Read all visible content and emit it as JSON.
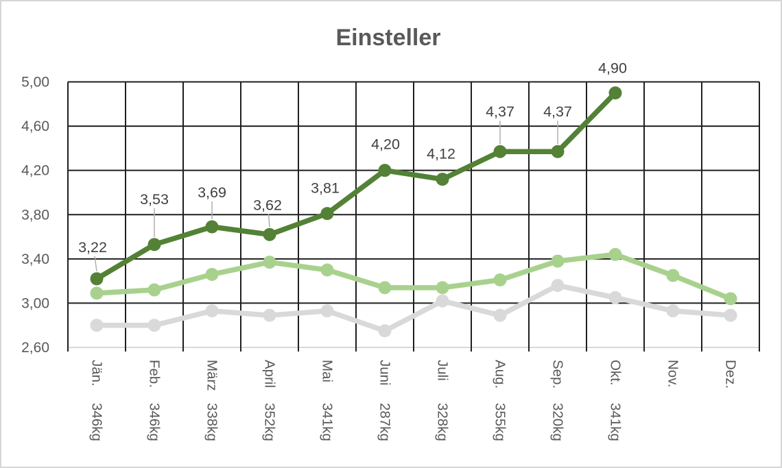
{
  "window": {
    "background": "#ffffff",
    "border_color": "#d6d6d6"
  },
  "chart_data": {
    "type": "line",
    "title": "Einsteller",
    "title_color": "#595959",
    "legend": {
      "show": false
    },
    "grid": {
      "show": true,
      "color": "#1f1f1f"
    },
    "categories": [
      {
        "month": "Jän.",
        "weight": "346kg"
      },
      {
        "month": "Feb.",
        "weight": "346kg"
      },
      {
        "month": "März",
        "weight": "338kg"
      },
      {
        "month": "April",
        "weight": "352kg"
      },
      {
        "month": "Mai",
        "weight": "341kg"
      },
      {
        "month": "Juni",
        "weight": "287kg"
      },
      {
        "month": "Juli",
        "weight": "328kg"
      },
      {
        "month": "Aug.",
        "weight": "355kg"
      },
      {
        "month": "Sep.",
        "weight": "320kg"
      },
      {
        "month": "Okt.",
        "weight": "341kg"
      },
      {
        "month": "Nov.",
        "weight": ""
      },
      {
        "month": "Dez.",
        "weight": ""
      }
    ],
    "y_axis": {
      "min": 2.6,
      "max": 5.0,
      "step": 0.4,
      "tick_labels": [
        "5,00",
        "4,60",
        "4,20",
        "3,80",
        "3,40",
        "3,00",
        "2,60"
      ],
      "label_color": "#595959"
    },
    "x_axis": {
      "label_color": "#595959",
      "tick_color": "#1f1f1f",
      "axis_line_color": "#d9d9d9"
    },
    "series": [
      {
        "id": "gray-line",
        "color": "#d9d9d9",
        "values": [
          2.8,
          2.8,
          2.93,
          2.89,
          2.93,
          2.75,
          3.02,
          2.89,
          3.16,
          3.05,
          2.93,
          2.89
        ]
      },
      {
        "id": "light-green-line",
        "color": "#a9d18e",
        "values": [
          3.09,
          3.12,
          3.26,
          3.37,
          3.3,
          3.14,
          3.14,
          3.21,
          3.38,
          3.44,
          3.25,
          3.04
        ]
      },
      {
        "id": "dark-green-line",
        "color": "#538135",
        "label_color": "#404040",
        "leader_color": "#b0aeae",
        "values": [
          3.22,
          3.53,
          3.69,
          3.62,
          3.81,
          4.2,
          4.12,
          4.37,
          4.37,
          4.9
        ],
        "point_labels": [
          {
            "text": "3,22",
            "dx": -6,
            "dy": -39,
            "leader": true
          },
          {
            "text": "3,53",
            "dx": 0,
            "dy": -59,
            "leader": true
          },
          {
            "text": "3,69",
            "dx": 0,
            "dy": -43,
            "leader": true
          },
          {
            "text": "3,62",
            "dx": -3,
            "dy": -36,
            "leader": true
          },
          {
            "text": "3,81",
            "dx": -3,
            "dy": -30,
            "leader": false
          },
          {
            "text": "4,20",
            "dx": 1,
            "dy": -31,
            "leader": false
          },
          {
            "text": "4,12",
            "dx": -2,
            "dy": -30,
            "leader": false
          },
          {
            "text": "4,37",
            "dx": 0,
            "dy": -51,
            "leader": true
          },
          {
            "text": "4,37",
            "dx": 0,
            "dy": -51,
            "leader": true
          },
          {
            "text": "4,90",
            "dx": -4,
            "dy": -29,
            "leader": false
          }
        ]
      }
    ]
  }
}
